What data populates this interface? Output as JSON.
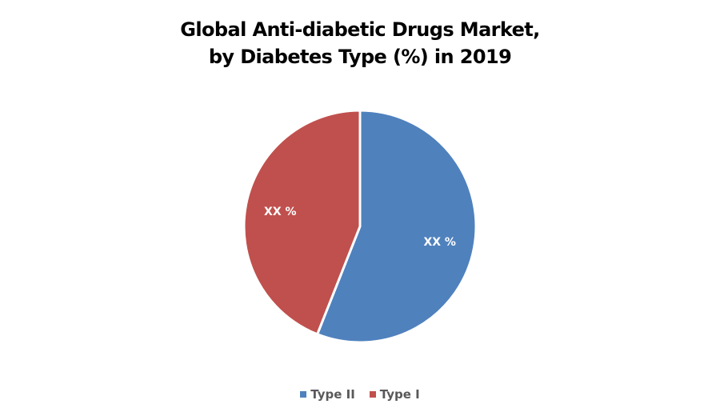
{
  "chart_data": {
    "type": "pie",
    "title": "Global Anti-diabetic Drugs Market, by Diabetes Type (%) in 2019",
    "title_lines": [
      "Global Anti-diabetic Drugs Market,",
      "by Diabetes Type (%) in 2019"
    ],
    "categories": [
      "Type II",
      "Type I"
    ],
    "values": [
      56,
      44
    ],
    "data_labels": [
      "XX %",
      "XX %"
    ],
    "colors": [
      "#4F81BD",
      "#C0504D"
    ],
    "legend_position": "bottom",
    "legend": [
      {
        "label": "Type II",
        "color": "#4F81BD"
      },
      {
        "label": "Type I",
        "color": "#C0504D"
      }
    ]
  }
}
